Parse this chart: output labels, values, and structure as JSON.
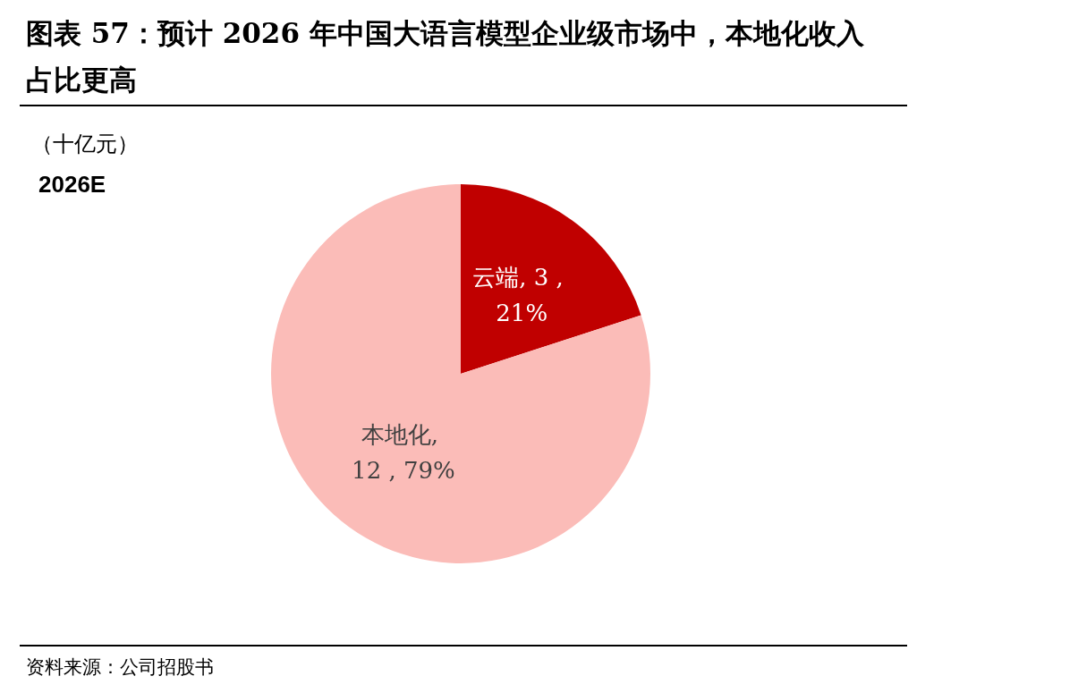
{
  "chart_data": {
    "type": "pie",
    "title": "图表 57：预计 2026 年中国大语言模型企业级市场中，本地化收入占比更高",
    "subtitle": "（十亿元）",
    "categories": [
      "云端",
      "本地化"
    ],
    "values": [
      3,
      12
    ],
    "colors": [
      "#c00000",
      "#fbbcb8"
    ],
    "value_labels": [
      ", 3 , 21%",
      ", 12 , 79%"
    ],
    "legend": false,
    "annotations": [
      "2026E",
      "资料来源：公司招股书"
    ]
  }
}
